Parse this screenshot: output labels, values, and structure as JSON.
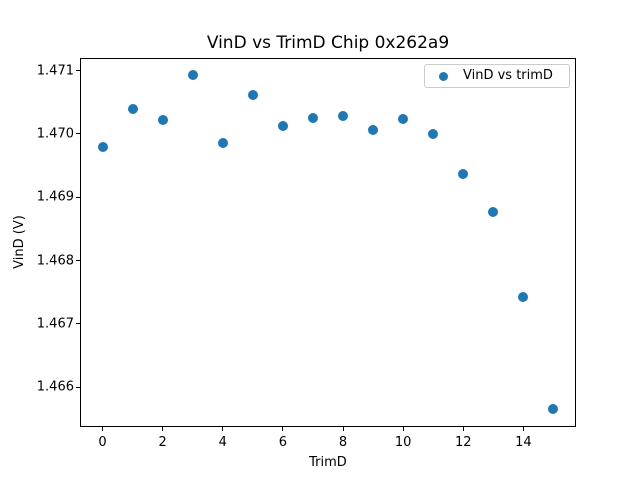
{
  "figure": {
    "background": "#ffffff"
  },
  "chart_data": {
    "type": "scatter",
    "title": "VinD vs TrimD Chip 0x262a9",
    "xlabel": "TrimD",
    "ylabel": "VinD (V)",
    "legend": {
      "label": "VinD vs trimD",
      "position": "upper-right",
      "marker": "circle",
      "border_color": "#cccccc"
    },
    "grid": false,
    "marker_color": "#1f77b4",
    "axes_color": "#000000",
    "x": [
      0,
      1,
      2,
      3,
      4,
      5,
      6,
      7,
      8,
      9,
      10,
      11,
      12,
      13,
      14,
      15
    ],
    "y": [
      1.46979,
      1.4704,
      1.47022,
      1.47093,
      1.46985,
      1.47062,
      1.47013,
      1.47025,
      1.47029,
      1.47006,
      1.47024,
      1.47,
      1.46937,
      1.46876,
      1.46742,
      1.46565
    ],
    "xlim": [
      -0.75,
      15.75
    ],
    "ylim": [
      1.46537,
      1.4712
    ],
    "x_ticks": [
      0,
      2,
      4,
      6,
      8,
      10,
      12,
      14
    ],
    "x_tick_labels": [
      "0",
      "2",
      "4",
      "6",
      "8",
      "10",
      "12",
      "14"
    ],
    "y_ticks": [
      1.471,
      1.47,
      1.469,
      1.468,
      1.467,
      1.466
    ],
    "y_tick_labels": [
      "1.471",
      "1.470",
      "1.469",
      "1.468",
      "1.467",
      "1.466"
    ]
  }
}
